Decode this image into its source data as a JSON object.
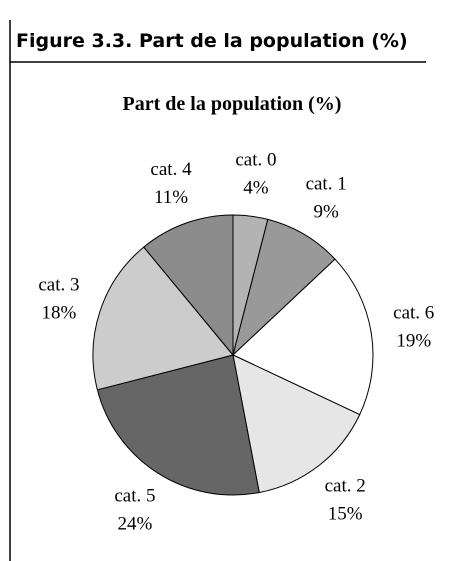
{
  "header": "Figure 3.3.  Part de la population (%)",
  "chart_data": {
    "type": "pie",
    "title": "Part de la population (%)",
    "categories": [
      "cat. 0",
      "cat. 1",
      "cat. 6",
      "cat. 2",
      "cat. 5",
      "cat. 3",
      "cat. 4"
    ],
    "values": [
      4,
      9,
      19,
      15,
      24,
      18,
      11
    ],
    "value_labels": [
      "4%",
      "9%",
      "19%",
      "15%",
      "24%",
      "18%",
      "11%"
    ],
    "colors": [
      "#b3b3b3",
      "#999999",
      "#ffffff",
      "#e6e6e6",
      "#666666",
      "#cccccc",
      "#8c8c8c"
    ]
  }
}
